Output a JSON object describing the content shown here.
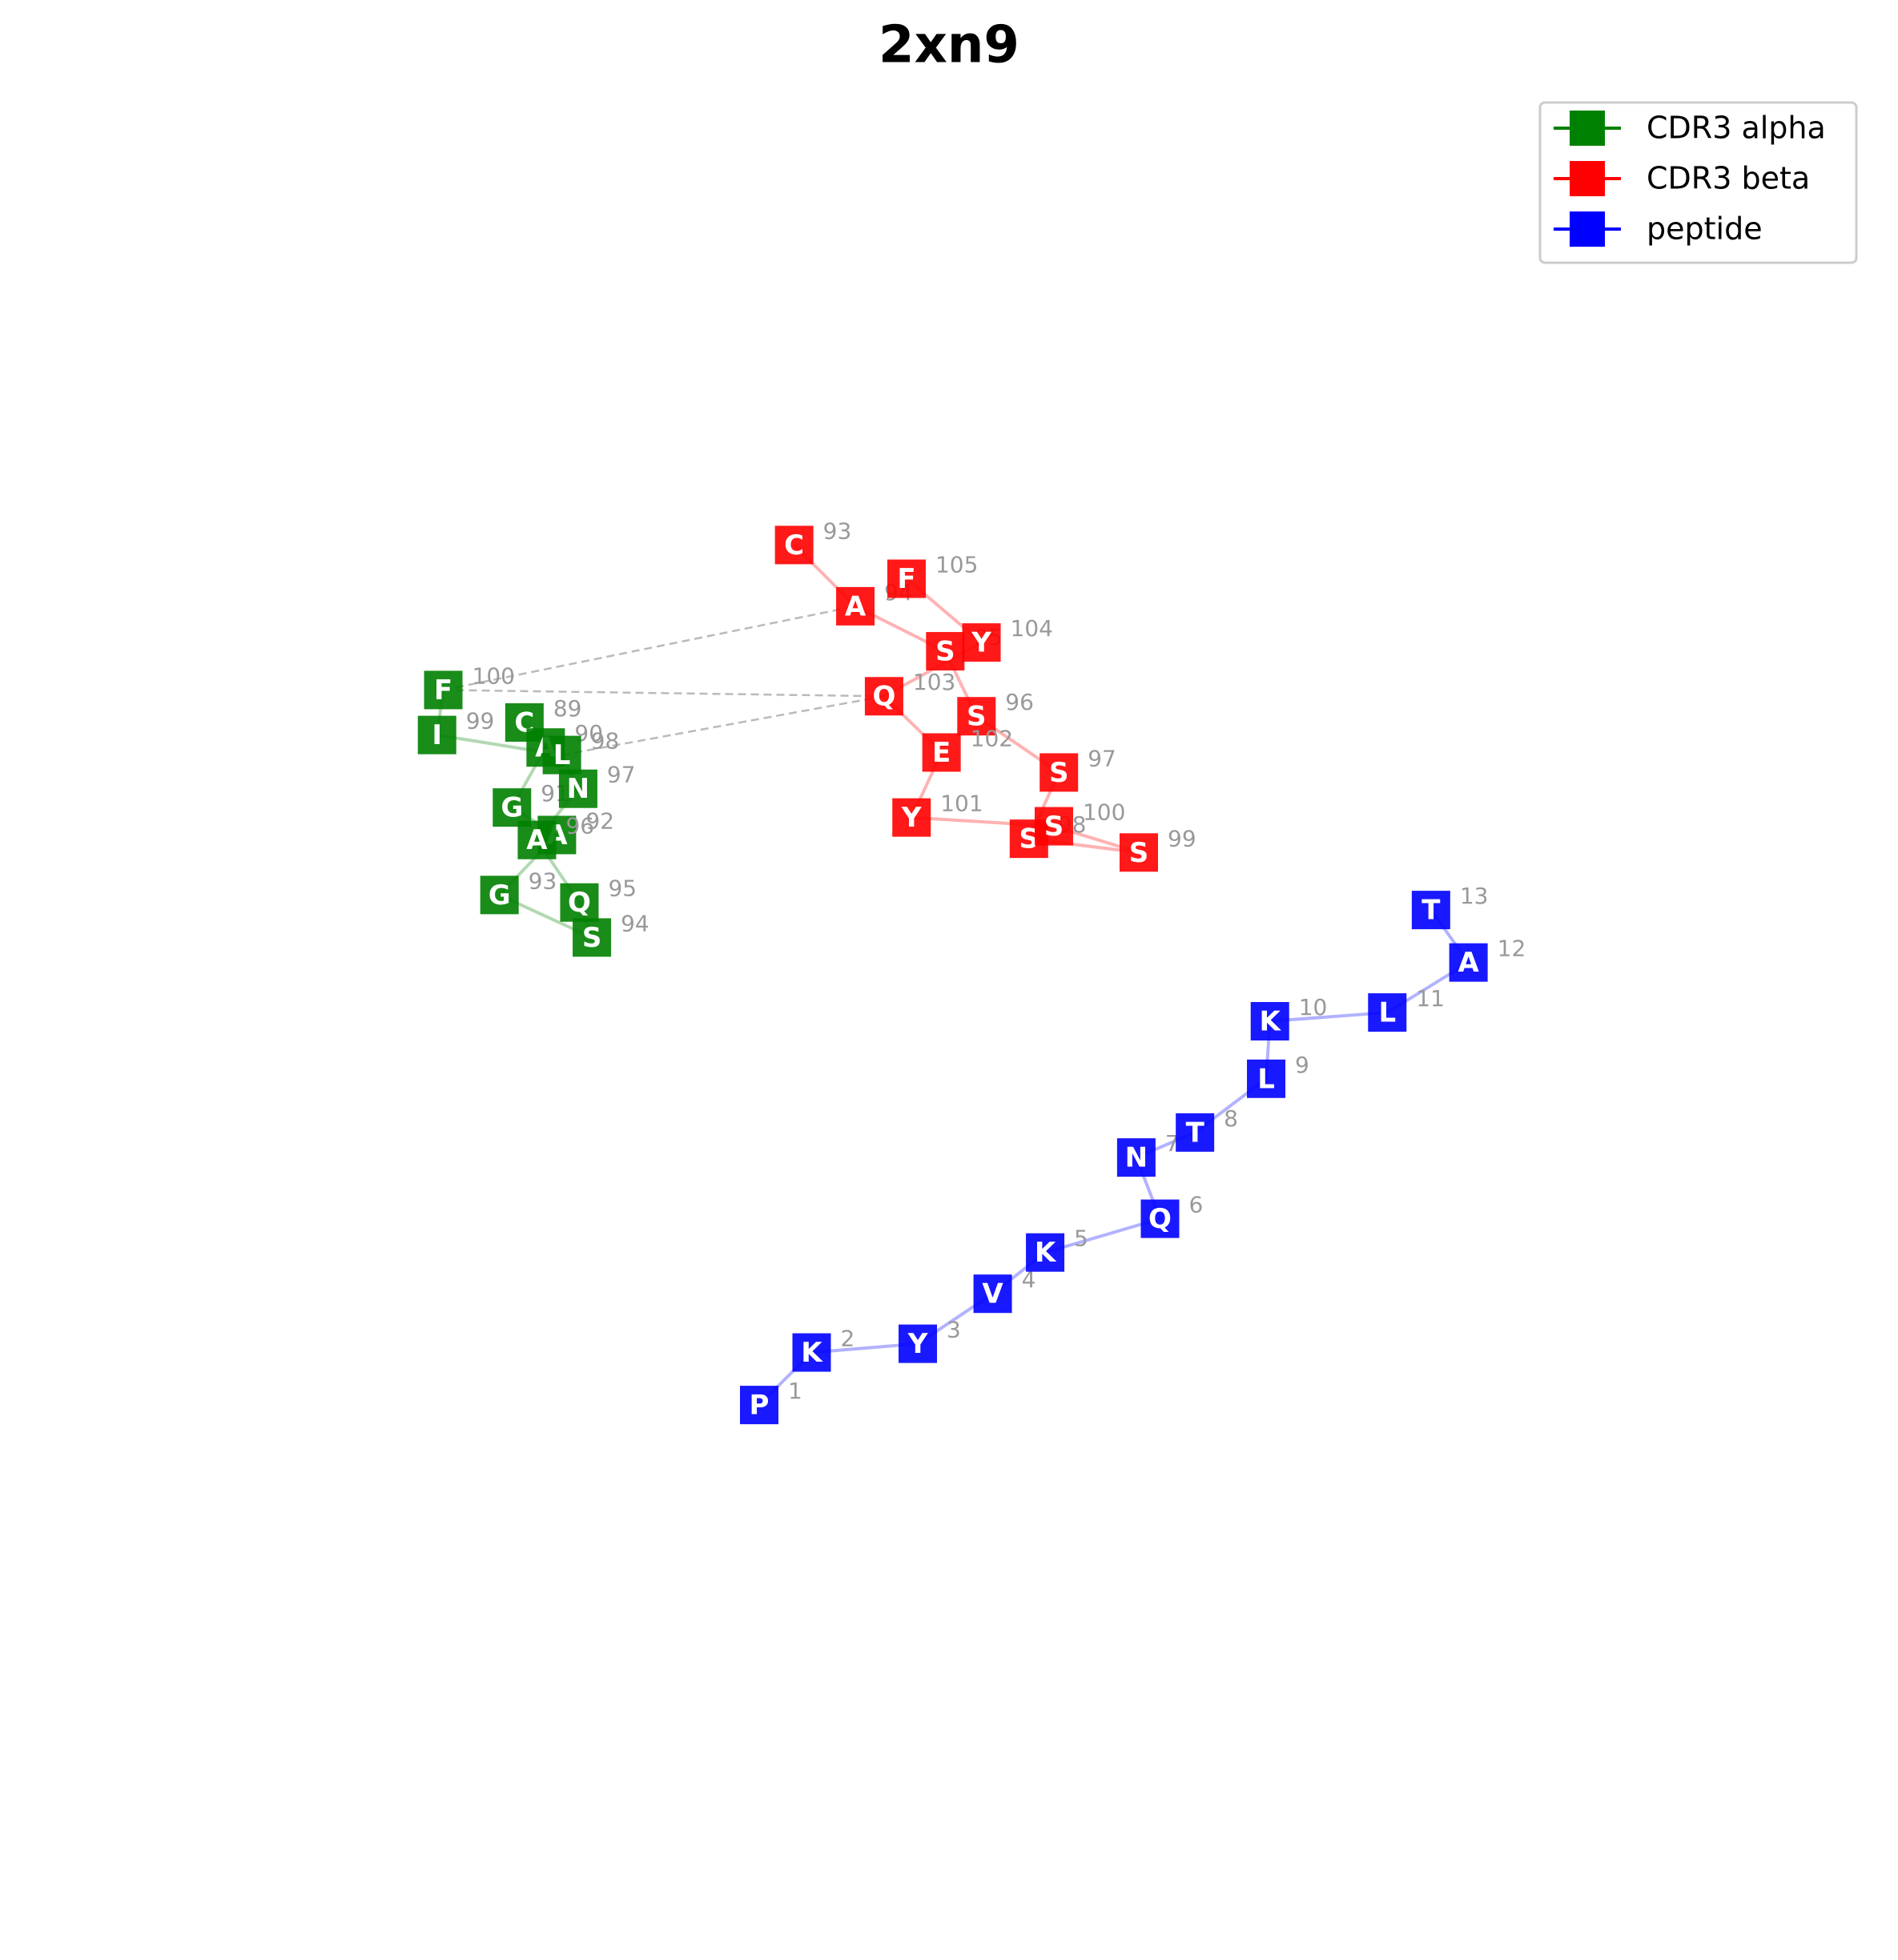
{
  "chart_data": {
    "type": "scatter",
    "title": "2xn9",
    "xlim": [
      0,
      1520
    ],
    "ylim": [
      1568,
      0
    ],
    "legend": "upper right",
    "series": [
      {
        "name": "CDR3 alpha",
        "color": "#008000",
        "labels": [
          "C",
          "A",
          "G",
          "A",
          "G",
          "S",
          "Q",
          "A",
          "N",
          "L",
          "I",
          "F"
        ],
        "numbers": [
          89,
          90,
          91,
          92,
          93,
          94,
          95,
          96,
          97,
          98,
          99,
          100
        ],
        "x": [
          420,
          437,
          410,
          446,
          400,
          474,
          464,
          430,
          463,
          450,
          350,
          355
        ],
        "y": [
          578,
          598,
          646,
          668,
          716,
          750,
          722,
          672,
          631,
          604,
          588,
          552
        ]
      },
      {
        "name": "CDR3 beta",
        "color": "#ff0000",
        "labels": [
          "C",
          "A",
          "S",
          "S",
          "S",
          "S",
          "S",
          "S",
          "Y",
          "E",
          "Q",
          "Y",
          "F"
        ],
        "numbers": [
          93,
          94,
          95,
          96,
          97,
          98,
          99,
          100,
          101,
          102,
          103,
          104,
          105
        ],
        "x": [
          636,
          685,
          757,
          782,
          848,
          824,
          912,
          844,
          730,
          754,
          708,
          786,
          726
        ],
        "y": [
          436,
          485,
          521,
          573,
          618,
          671,
          682,
          661,
          654,
          602,
          557,
          514,
          463
        ]
      },
      {
        "name": "peptide",
        "color": "#0000ff",
        "labels": [
          "P",
          "K",
          "Y",
          "V",
          "K",
          "Q",
          "N",
          "T",
          "L",
          "K",
          "L",
          "A",
          "T"
        ],
        "numbers": [
          1,
          2,
          3,
          4,
          5,
          6,
          7,
          8,
          9,
          10,
          11,
          12,
          13
        ],
        "x": [
          608,
          650,
          735,
          795,
          837,
          929,
          910,
          957,
          1014,
          1017,
          1111,
          1176,
          1146
        ],
        "y": [
          1124,
          1082,
          1075,
          1035,
          1002,
          975,
          926,
          906,
          863,
          817,
          810,
          770,
          728
        ]
      }
    ]
  }
}
